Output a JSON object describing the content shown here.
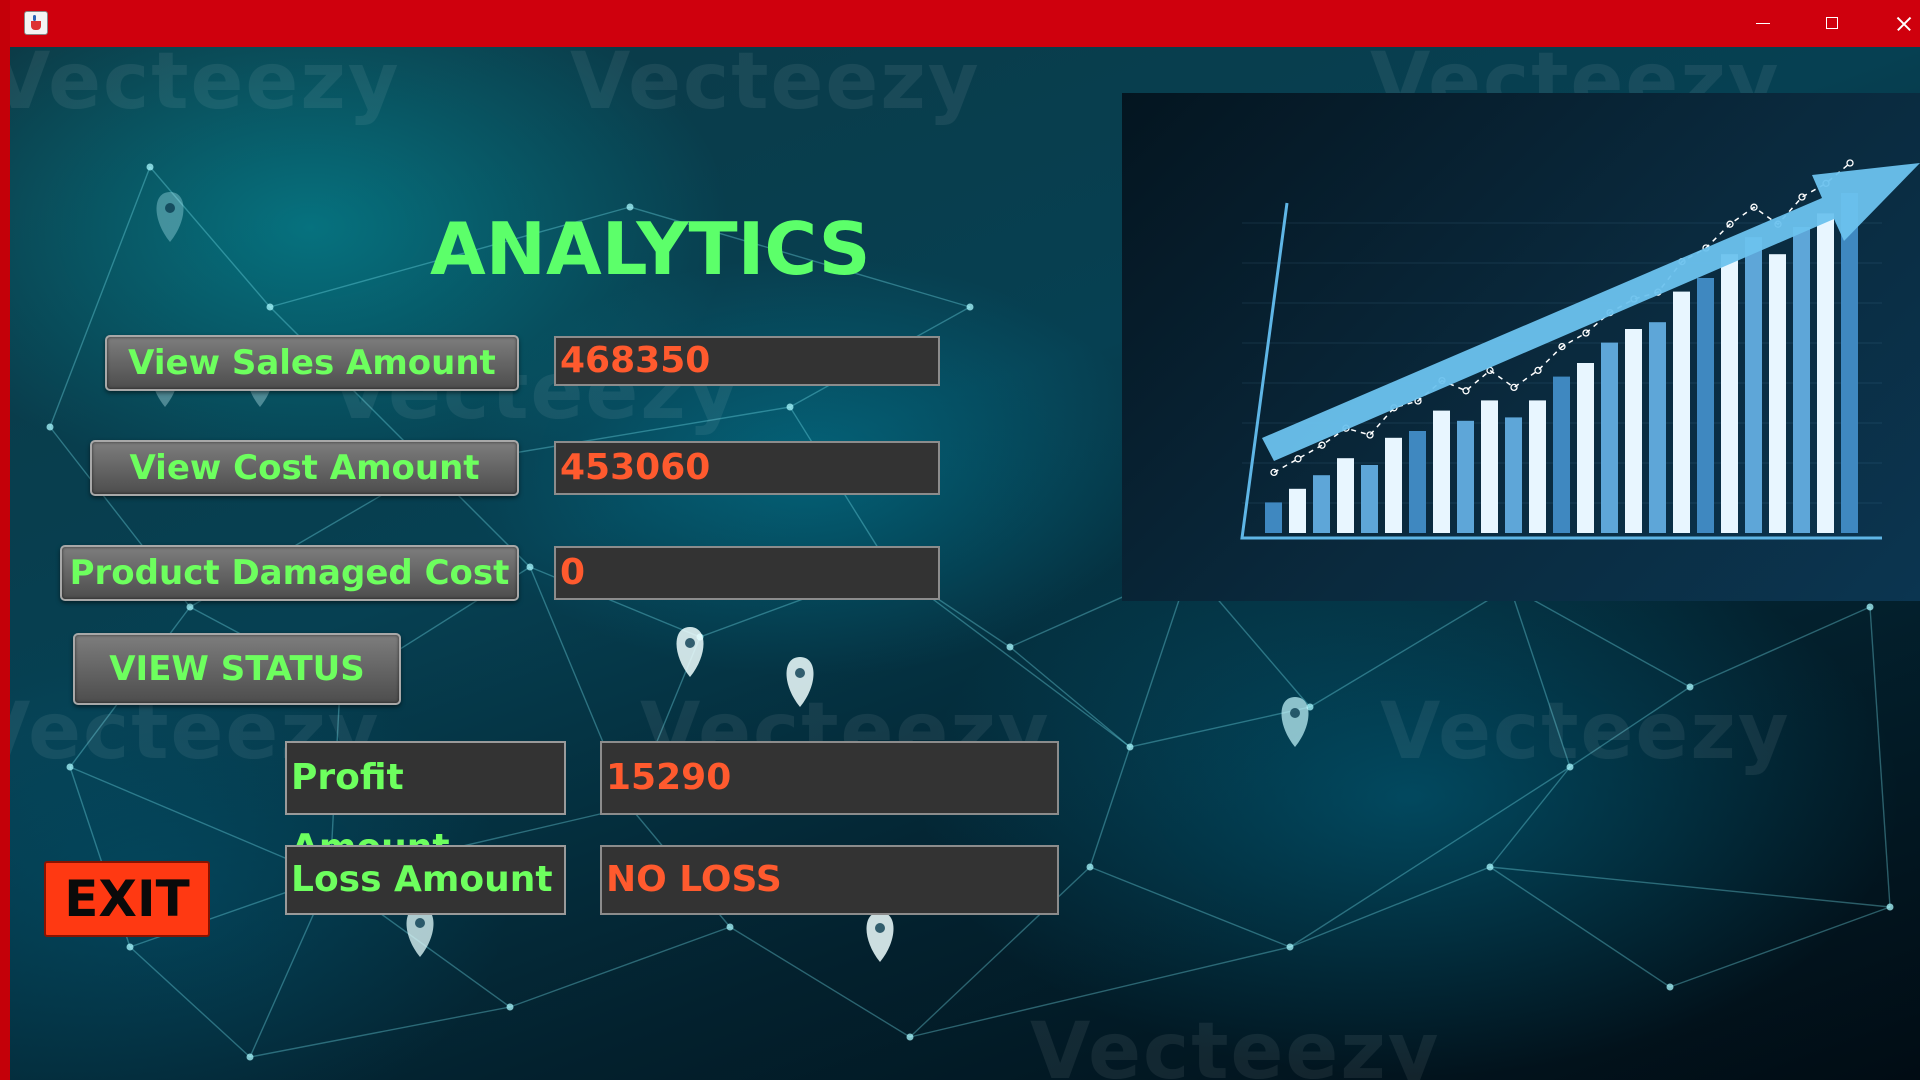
{
  "window": {
    "title": "",
    "controls": [
      "minimize-icon",
      "maximize-icon",
      "close-icon"
    ]
  },
  "background": {
    "watermark_text": "Vecteezy"
  },
  "header": {
    "title": "ANALYTICS"
  },
  "buttons": {
    "view_sales": "View Sales Amount",
    "view_cost": "View Cost Amount",
    "product_damaged": "Product Damaged Cost",
    "view_status": "VIEW STATUS",
    "exit": "EXIT"
  },
  "fields": {
    "sales_amount": "468350",
    "cost_amount": "453060",
    "damaged_cost": "0",
    "profit_amount": "15290",
    "loss_amount": "NO LOSS"
  },
  "labels": {
    "profit": "Profit Amount",
    "loss": "Loss Amount"
  },
  "colors": {
    "title_bar": "#cf000d",
    "accent_green": "#6dff5e",
    "value_orange": "#ff5a2e",
    "exit_button": "#ff3912"
  },
  "decorative_chart": {
    "bars": [
      0.09,
      0.13,
      0.17,
      0.22,
      0.2,
      0.28,
      0.3,
      0.36,
      0.33,
      0.39,
      0.34,
      0.39,
      0.46,
      0.5,
      0.56,
      0.6,
      0.62,
      0.71,
      0.75,
      0.82,
      0.87,
      0.82,
      0.9,
      0.94,
      1.0
    ]
  }
}
